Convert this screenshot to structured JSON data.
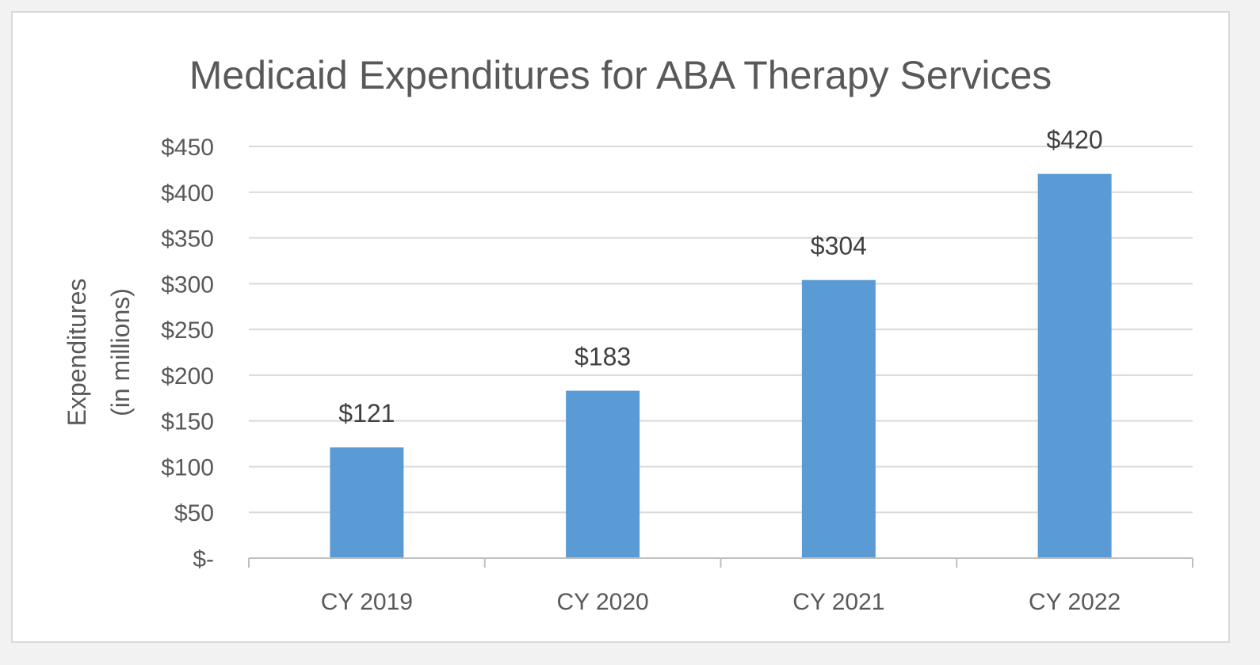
{
  "chart_data": {
    "type": "bar",
    "title": "Medicaid Expenditures for ABA Therapy Services",
    "ylabel_lines": [
      "Expenditures",
      "(in millions)"
    ],
    "categories": [
      "CY 2019",
      "CY 2020",
      "CY 2021",
      "CY 2022"
    ],
    "values": [
      121,
      183,
      304,
      420
    ],
    "data_labels": [
      "$121",
      "$183",
      "$304",
      "$420"
    ],
    "ylim": [
      0,
      450
    ],
    "yticks": [
      0,
      50,
      100,
      150,
      200,
      250,
      300,
      350,
      400,
      450
    ],
    "ytick_labels": [
      "$-",
      "$50",
      "$100",
      "$150",
      "$200",
      "$250",
      "$300",
      "$350",
      "$400",
      "$450"
    ],
    "grid": true,
    "legend": "none",
    "bar_color": "#5b9bd5",
    "grid_color": "#d9d9d9"
  }
}
